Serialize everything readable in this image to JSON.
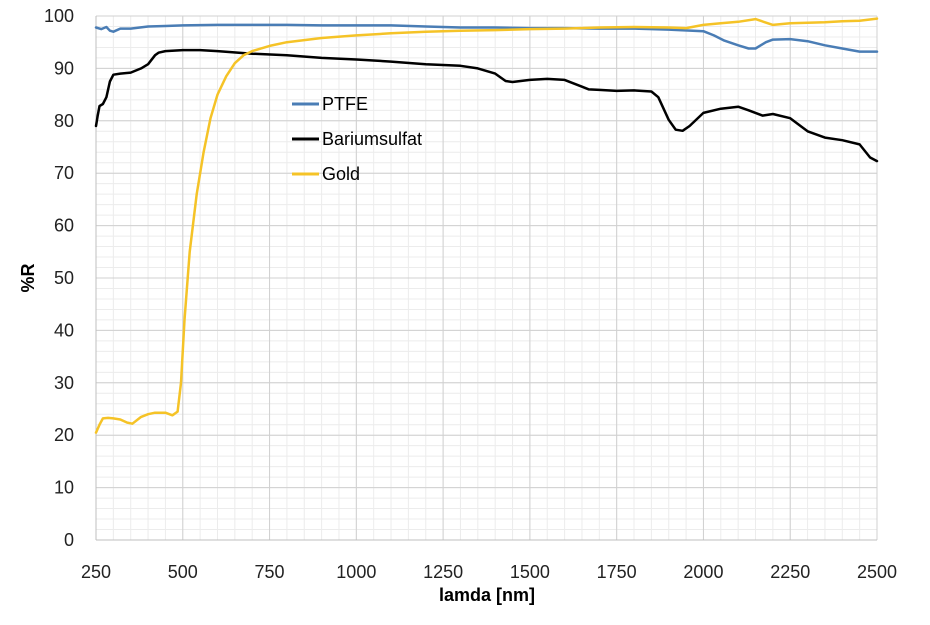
{
  "chart_data": {
    "type": "line",
    "title": "",
    "xlabel": "lamda [nm]",
    "ylabel": "%R",
    "xlim": [
      250,
      2500
    ],
    "ylim": [
      0,
      100
    ],
    "xticks": [
      250,
      500,
      750,
      1000,
      1250,
      1500,
      1750,
      2000,
      2250,
      2500
    ],
    "yticks": [
      0,
      10,
      20,
      30,
      40,
      50,
      60,
      70,
      80,
      90,
      100
    ],
    "grid": true,
    "legend_position": "upper-left-inside",
    "series": [
      {
        "name": "PTFE",
        "color": "#4a7db5",
        "x": [
          250,
          265,
          280,
          290,
          300,
          320,
          350,
          400,
          450,
          500,
          600,
          700,
          800,
          900,
          1000,
          1100,
          1200,
          1300,
          1400,
          1500,
          1600,
          1700,
          1800,
          1900,
          2000,
          2030,
          2060,
          2100,
          2130,
          2150,
          2180,
          2200,
          2250,
          2300,
          2350,
          2400,
          2450,
          2500
        ],
        "y": [
          97.8,
          97.5,
          97.9,
          97.2,
          97.0,
          97.6,
          97.6,
          98.0,
          98.1,
          98.2,
          98.3,
          98.3,
          98.3,
          98.2,
          98.2,
          98.2,
          98.0,
          97.8,
          97.8,
          97.7,
          97.7,
          97.6,
          97.6,
          97.4,
          97.1,
          96.3,
          95.3,
          94.4,
          93.8,
          93.8,
          95.0,
          95.5,
          95.6,
          95.2,
          94.4,
          93.8,
          93.2,
          93.2
        ]
      },
      {
        "name": "Bariumsulfat",
        "color": "#000000",
        "x": [
          250,
          255,
          260,
          270,
          280,
          290,
          300,
          320,
          350,
          380,
          400,
          420,
          430,
          450,
          500,
          550,
          600,
          700,
          800,
          900,
          1000,
          1100,
          1200,
          1300,
          1350,
          1400,
          1430,
          1450,
          1500,
          1550,
          1600,
          1650,
          1670,
          1700,
          1750,
          1800,
          1850,
          1870,
          1900,
          1920,
          1940,
          1960,
          2000,
          2050,
          2100,
          2130,
          2170,
          2200,
          2250,
          2300,
          2350,
          2400,
          2450,
          2480,
          2500
        ],
        "y": [
          79.0,
          81.0,
          82.8,
          83.2,
          84.5,
          87.5,
          88.8,
          89.0,
          89.2,
          90.0,
          90.8,
          92.5,
          93.0,
          93.3,
          93.5,
          93.5,
          93.3,
          92.8,
          92.5,
          92.0,
          91.7,
          91.3,
          90.8,
          90.5,
          90.0,
          89.0,
          87.6,
          87.4,
          87.8,
          88.0,
          87.8,
          86.5,
          86.0,
          85.9,
          85.7,
          85.8,
          85.6,
          84.5,
          80.2,
          78.3,
          78.1,
          79.0,
          81.5,
          82.3,
          82.7,
          82.0,
          81.0,
          81.3,
          80.5,
          78.0,
          76.8,
          76.3,
          75.5,
          73.0,
          72.3
        ]
      },
      {
        "name": "Gold",
        "color": "#f5c327",
        "x": [
          250,
          260,
          270,
          285,
          300,
          320,
          340,
          355,
          380,
          400,
          420,
          450,
          470,
          485,
          495,
          505,
          520,
          540,
          560,
          580,
          600,
          625,
          650,
          675,
          700,
          750,
          800,
          900,
          1000,
          1100,
          1200,
          1300,
          1400,
          1500,
          1600,
          1700,
          1800,
          1900,
          1950,
          2000,
          2050,
          2100,
          2150,
          2200,
          2250,
          2300,
          2350,
          2400,
          2450,
          2500
        ],
        "y": [
          20.5,
          22.0,
          23.2,
          23.3,
          23.2,
          23.0,
          22.4,
          22.2,
          23.5,
          24.0,
          24.3,
          24.3,
          23.8,
          24.5,
          30.0,
          42.0,
          55.0,
          66.0,
          74.0,
          80.5,
          85.0,
          88.5,
          91.0,
          92.5,
          93.3,
          94.3,
          95.0,
          95.8,
          96.3,
          96.7,
          97.0,
          97.2,
          97.3,
          97.5,
          97.6,
          97.8,
          97.9,
          97.8,
          97.7,
          98.3,
          98.6,
          98.9,
          99.4,
          98.3,
          98.6,
          98.7,
          98.8,
          99.0,
          99.1,
          99.5
        ]
      }
    ]
  }
}
